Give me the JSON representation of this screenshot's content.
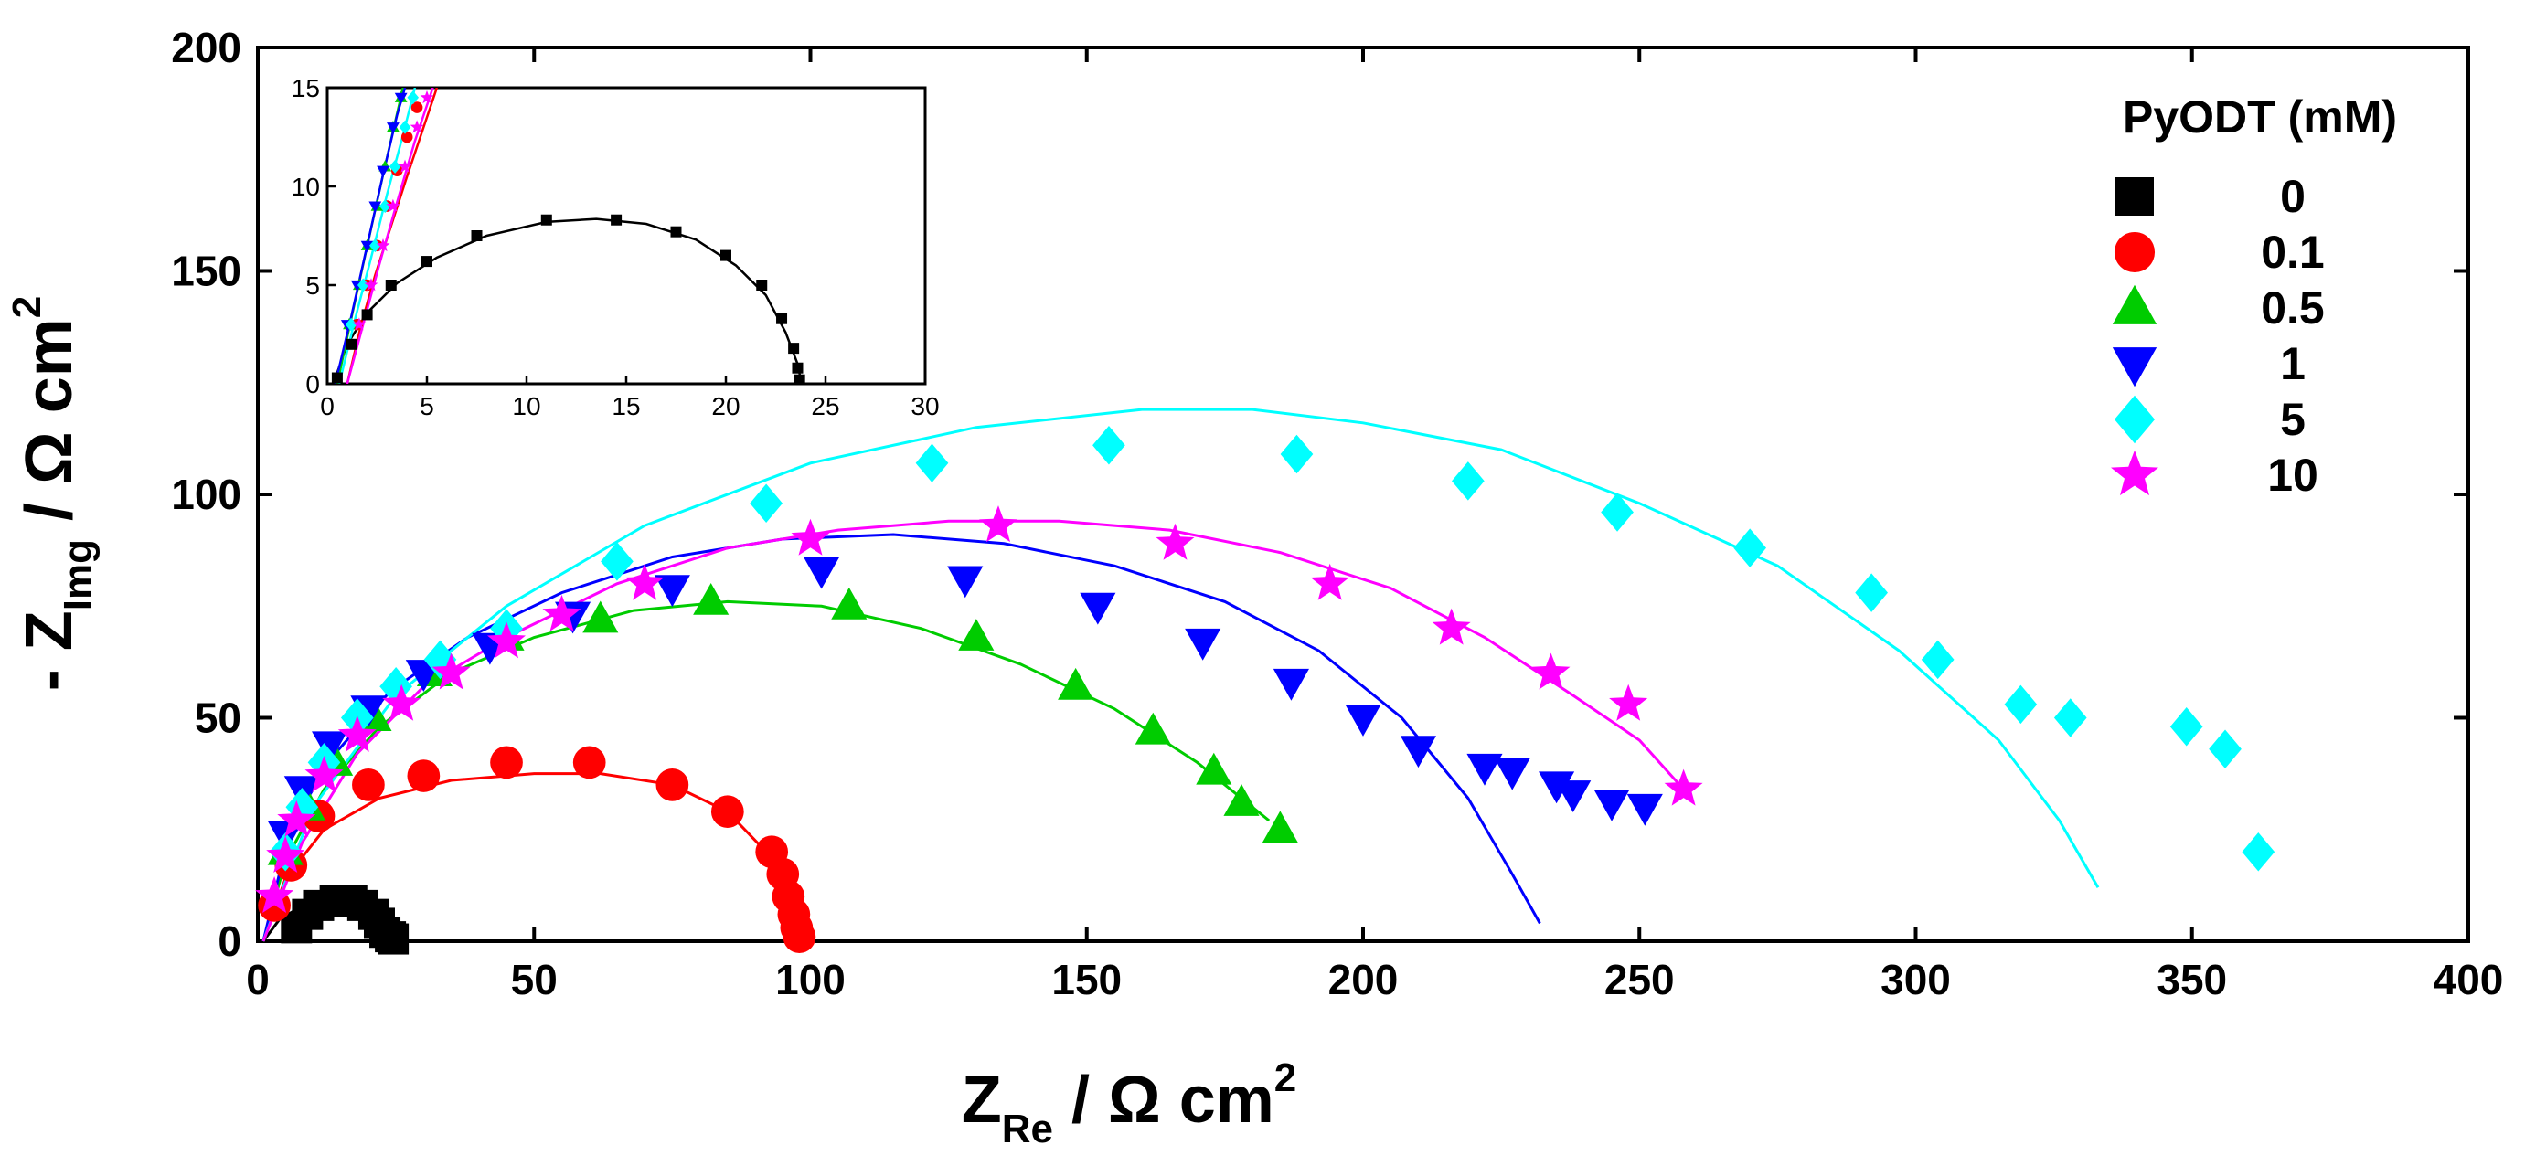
{
  "chart_data": {
    "type": "scatter",
    "title": "",
    "xlabel": {
      "main": "Z",
      "sub": "Re",
      "unit": " / Ω cm",
      "sup": "2"
    },
    "ylabel": {
      "prefix": "- Z",
      "sub": "Img",
      "unit": " / Ω cm",
      "sup": "2"
    },
    "xlim": [
      0,
      400
    ],
    "ylim": [
      0,
      200
    ],
    "xticks": [
      0,
      50,
      100,
      150,
      200,
      250,
      300,
      350,
      400
    ],
    "yticks": [
      0,
      50,
      100,
      150,
      200
    ],
    "grid": false,
    "legend": {
      "title": "PyODT (mM)",
      "position": "top-right"
    },
    "series": [
      {
        "name": "0",
        "color": "#000000",
        "marker": "square",
        "points": [
          [
            7,
            3
          ],
          [
            9,
            6
          ],
          [
            11,
            8
          ],
          [
            14,
            9
          ],
          [
            17,
            9
          ],
          [
            19,
            8
          ],
          [
            21,
            6
          ],
          [
            22,
            4
          ],
          [
            23,
            2
          ],
          [
            24,
            1
          ],
          [
            24.5,
            0.5
          ]
        ],
        "fit": [
          [
            1,
            0
          ],
          [
            4,
            5
          ],
          [
            8,
            7.8
          ],
          [
            12.5,
            8.6
          ],
          [
            17,
            8.2
          ],
          [
            20.5,
            6.5
          ],
          [
            23,
            3.5
          ],
          [
            24,
            0
          ]
        ]
      },
      {
        "name": "0.1",
        "color": "#ff0000",
        "marker": "circle",
        "points": [
          [
            3,
            8
          ],
          [
            6,
            17
          ],
          [
            11,
            28
          ],
          [
            20,
            35
          ],
          [
            30,
            37
          ],
          [
            45,
            40
          ],
          [
            60,
            40
          ],
          [
            75,
            35
          ],
          [
            85,
            29
          ],
          [
            93,
            20
          ],
          [
            95,
            15
          ],
          [
            96,
            10
          ],
          [
            97,
            6
          ],
          [
            97.5,
            3
          ],
          [
            98,
            1
          ]
        ],
        "fit": [
          [
            1,
            0
          ],
          [
            5,
            14
          ],
          [
            12,
            25
          ],
          [
            22,
            32
          ],
          [
            35,
            36
          ],
          [
            50,
            37.5
          ],
          [
            62,
            37.5
          ],
          [
            75,
            35
          ],
          [
            85,
            29
          ],
          [
            92,
            20
          ],
          [
            96,
            10
          ],
          [
            98,
            0
          ]
        ]
      },
      {
        "name": "0.5",
        "color": "#00cc00",
        "marker": "triangle-up",
        "points": [
          [
            5,
            20
          ],
          [
            9,
            30
          ],
          [
            14,
            40
          ],
          [
            21,
            50
          ],
          [
            32,
            60
          ],
          [
            45,
            68
          ],
          [
            62,
            72
          ],
          [
            82,
            76
          ],
          [
            107,
            75
          ],
          [
            130,
            68
          ],
          [
            148,
            57
          ],
          [
            162,
            47
          ],
          [
            173,
            38
          ],
          [
            178,
            31
          ],
          [
            185,
            25
          ]
        ],
        "fit": [
          [
            1,
            0
          ],
          [
            5,
            18
          ],
          [
            12,
            34
          ],
          [
            22,
            48
          ],
          [
            35,
            60
          ],
          [
            50,
            68
          ],
          [
            68,
            74
          ],
          [
            85,
            76
          ],
          [
            102,
            75
          ],
          [
            120,
            70
          ],
          [
            138,
            62
          ],
          [
            155,
            52
          ],
          [
            170,
            40
          ],
          [
            183,
            27
          ]
        ]
      },
      {
        "name": "1",
        "color": "#0000ff",
        "marker": "triangle-down",
        "points": [
          [
            5,
            24
          ],
          [
            8,
            34
          ],
          [
            13,
            44
          ],
          [
            20,
            52
          ],
          [
            30,
            60
          ],
          [
            42,
            66
          ],
          [
            57,
            73
          ],
          [
            75,
            79
          ],
          [
            102,
            83
          ],
          [
            128,
            81
          ],
          [
            152,
            75
          ],
          [
            171,
            67
          ],
          [
            187,
            58
          ],
          [
            200,
            50
          ],
          [
            210,
            43
          ],
          [
            222,
            39
          ],
          [
            227,
            38
          ],
          [
            235,
            35
          ],
          [
            238,
            33
          ],
          [
            245,
            31
          ],
          [
            251,
            30
          ]
        ],
        "fit": [
          [
            1,
            0
          ],
          [
            6,
            26
          ],
          [
            14,
            42
          ],
          [
            24,
            56
          ],
          [
            38,
            68
          ],
          [
            55,
            78
          ],
          [
            75,
            86
          ],
          [
            95,
            90
          ],
          [
            115,
            91
          ],
          [
            135,
            89
          ],
          [
            155,
            84
          ],
          [
            175,
            76
          ],
          [
            192,
            65
          ],
          [
            207,
            50
          ],
          [
            219,
            32
          ],
          [
            227,
            15
          ],
          [
            232,
            4
          ]
        ]
      },
      {
        "name": "5",
        "color": "#00ffff",
        "marker": "diamond",
        "points": [
          [
            5,
            20
          ],
          [
            8,
            30
          ],
          [
            12,
            40
          ],
          [
            18,
            50
          ],
          [
            25,
            57
          ],
          [
            33,
            63
          ],
          [
            45,
            70
          ],
          [
            65,
            85
          ],
          [
            92,
            98
          ],
          [
            122,
            107
          ],
          [
            154,
            111
          ],
          [
            188,
            109
          ],
          [
            219,
            103
          ],
          [
            246,
            96
          ],
          [
            270,
            88
          ],
          [
            292,
            78
          ],
          [
            304,
            63
          ],
          [
            319,
            53
          ],
          [
            328,
            50
          ],
          [
            349,
            48
          ],
          [
            356,
            43
          ],
          [
            362,
            20
          ]
        ],
        "fit": [
          [
            1,
            0
          ],
          [
            10,
            30
          ],
          [
            25,
            55
          ],
          [
            45,
            75
          ],
          [
            70,
            93
          ],
          [
            100,
            107
          ],
          [
            130,
            115
          ],
          [
            160,
            119
          ],
          [
            180,
            119
          ],
          [
            200,
            116
          ],
          [
            225,
            110
          ],
          [
            250,
            98
          ],
          [
            275,
            84
          ],
          [
            297,
            65
          ],
          [
            315,
            45
          ],
          [
            326,
            27
          ],
          [
            333,
            12
          ]
        ]
      },
      {
        "name": "10",
        "color": "#ff00ff",
        "marker": "star",
        "points": [
          [
            3,
            10
          ],
          [
            5,
            19
          ],
          [
            7,
            27
          ],
          [
            12,
            37
          ],
          [
            18,
            46
          ],
          [
            26,
            53
          ],
          [
            35,
            60
          ],
          [
            45,
            67
          ],
          [
            55,
            73
          ],
          [
            70,
            80
          ],
          [
            100,
            90
          ],
          [
            134,
            93
          ],
          [
            166,
            89
          ],
          [
            194,
            80
          ],
          [
            216,
            70
          ],
          [
            234,
            60
          ],
          [
            248,
            53
          ],
          [
            258,
            34
          ]
        ],
        "fit": [
          [
            1,
            0
          ],
          [
            8,
            22
          ],
          [
            18,
            42
          ],
          [
            30,
            57
          ],
          [
            45,
            68
          ],
          [
            65,
            80
          ],
          [
            85,
            88
          ],
          [
            105,
            92
          ],
          [
            125,
            94
          ],
          [
            145,
            94
          ],
          [
            165,
            92
          ],
          [
            185,
            87
          ],
          [
            205,
            79
          ],
          [
            222,
            68
          ],
          [
            238,
            55
          ],
          [
            250,
            45
          ],
          [
            258,
            34
          ]
        ]
      }
    ],
    "inset": {
      "xlim": [
        0,
        30
      ],
      "ylim": [
        0,
        15
      ],
      "xticks": [
        0,
        5,
        10,
        15,
        20,
        25,
        30
      ],
      "yticks": [
        0,
        5,
        10,
        15
      ],
      "series": [
        {
          "name": "0",
          "color": "#000000",
          "marker": "square",
          "points": [
            [
              0.5,
              0.3
            ],
            [
              1.2,
              2
            ],
            [
              2,
              3.5
            ],
            [
              3.2,
              5
            ],
            [
              5,
              6.2
            ],
            [
              7.5,
              7.5
            ],
            [
              11,
              8.3
            ],
            [
              14.5,
              8.3
            ],
            [
              17.5,
              7.7
            ],
            [
              20,
              6.5
            ],
            [
              21.8,
              5
            ],
            [
              22.8,
              3.3
            ],
            [
              23.4,
              1.8
            ],
            [
              23.6,
              0.8
            ],
            [
              23.7,
              0.2
            ]
          ],
          "fit": [
            [
              0.3,
              0
            ],
            [
              1,
              2
            ],
            [
              2,
              3.6
            ],
            [
              3.5,
              5.1
            ],
            [
              5.5,
              6.4
            ],
            [
              8,
              7.5
            ],
            [
              11,
              8.2
            ],
            [
              13.5,
              8.35
            ],
            [
              16,
              8.1
            ],
            [
              18.5,
              7.3
            ],
            [
              20.5,
              6
            ],
            [
              22,
              4.5
            ],
            [
              23,
              2.6
            ],
            [
              23.6,
              1
            ],
            [
              23.8,
              0
            ]
          ]
        },
        {
          "name": "0.1",
          "color": "#ff0000",
          "marker": "circle",
          "points": [
            [
              1.5,
              3
            ],
            [
              2,
              5
            ],
            [
              2.5,
              7
            ],
            [
              3,
              9
            ],
            [
              3.5,
              10.8
            ],
            [
              4,
              12.5
            ],
            [
              4.5,
              14
            ]
          ],
          "fit": [
            [
              1,
              0
            ],
            [
              1.7,
              3
            ],
            [
              2.4,
              5.5
            ],
            [
              3.2,
              8
            ],
            [
              4,
              10.5
            ],
            [
              5,
              13.5
            ],
            [
              5.5,
              15
            ]
          ]
        },
        {
          "name": "0.5",
          "color": "#00cc00",
          "marker": "triangle-up",
          "points": [
            [
              1.1,
              3
            ],
            [
              1.6,
              5
            ],
            [
              2,
              7
            ],
            [
              2.5,
              9
            ],
            [
              2.9,
              11
            ],
            [
              3.3,
              13
            ],
            [
              3.7,
              14.5
            ]
          ],
          "fit": [
            [
              0.5,
              0
            ],
            [
              1.2,
              3.3
            ],
            [
              1.9,
              6.5
            ],
            [
              2.6,
              9.7
            ],
            [
              3.3,
              12.8
            ],
            [
              3.8,
              15
            ]
          ]
        },
        {
          "name": "1",
          "color": "#0000ff",
          "marker": "triangle-down",
          "points": [
            [
              1,
              3
            ],
            [
              1.5,
              5
            ],
            [
              2,
              7
            ],
            [
              2.4,
              9
            ],
            [
              2.8,
              10.8
            ],
            [
              3.3,
              13
            ],
            [
              3.7,
              14.5
            ]
          ],
          "fit": [
            [
              0.4,
              0
            ],
            [
              1.2,
              3.4
            ],
            [
              2,
              7
            ],
            [
              2.8,
              10.6
            ],
            [
              3.5,
              13.6
            ],
            [
              3.9,
              15
            ]
          ]
        },
        {
          "name": "5",
          "color": "#00ffff",
          "marker": "diamond",
          "points": [
            [
              1.2,
              3
            ],
            [
              1.8,
              5
            ],
            [
              2.4,
              7
            ],
            [
              2.9,
              9
            ],
            [
              3.4,
              11
            ],
            [
              3.9,
              13
            ],
            [
              4.3,
              14.5
            ]
          ],
          "fit": [
            [
              0.6,
              0
            ],
            [
              1.4,
              3.3
            ],
            [
              2.2,
              6.4
            ],
            [
              3,
              9.6
            ],
            [
              3.8,
              12.6
            ],
            [
              4.4,
              15
            ]
          ]
        },
        {
          "name": "10",
          "color": "#ff00ff",
          "marker": "star",
          "points": [
            [
              1.6,
              3
            ],
            [
              2.2,
              5
            ],
            [
              2.8,
              7
            ],
            [
              3.3,
              9
            ],
            [
              3.9,
              11
            ],
            [
              4.5,
              13
            ],
            [
              5,
              14.5
            ]
          ],
          "fit": [
            [
              1,
              0
            ],
            [
              1.8,
              3
            ],
            [
              2.6,
              6
            ],
            [
              3.5,
              9.2
            ],
            [
              4.4,
              12.3
            ],
            [
              5.3,
              15
            ]
          ]
        }
      ]
    }
  }
}
